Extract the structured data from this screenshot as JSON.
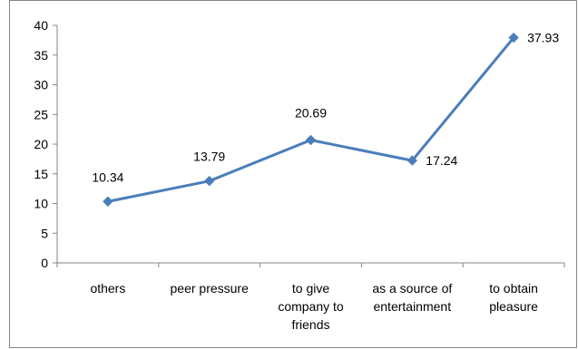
{
  "chart_data": {
    "type": "line",
    "title": "",
    "xlabel": "",
    "ylabel": "",
    "categories": [
      [
        "others"
      ],
      [
        "peer pressure"
      ],
      [
        "to give",
        "company to",
        "friends"
      ],
      [
        "as a source of",
        "entertainment"
      ],
      [
        "to obtain",
        "pleasure"
      ]
    ],
    "series": [
      {
        "values": [
          10.34,
          13.79,
          20.69,
          17.24,
          37.93
        ]
      }
    ],
    "data_labels": [
      "10.34",
      "13.79",
      "20.69",
      "17.24",
      "37.93"
    ],
    "ylim": [
      0,
      40
    ],
    "yticks": [
      0,
      5,
      10,
      15,
      20,
      25,
      30,
      35,
      40
    ],
    "grid": false,
    "legend": "none",
    "colors": {
      "line": "#4a7ebb",
      "axis": "#868686",
      "border": "#868686"
    }
  }
}
